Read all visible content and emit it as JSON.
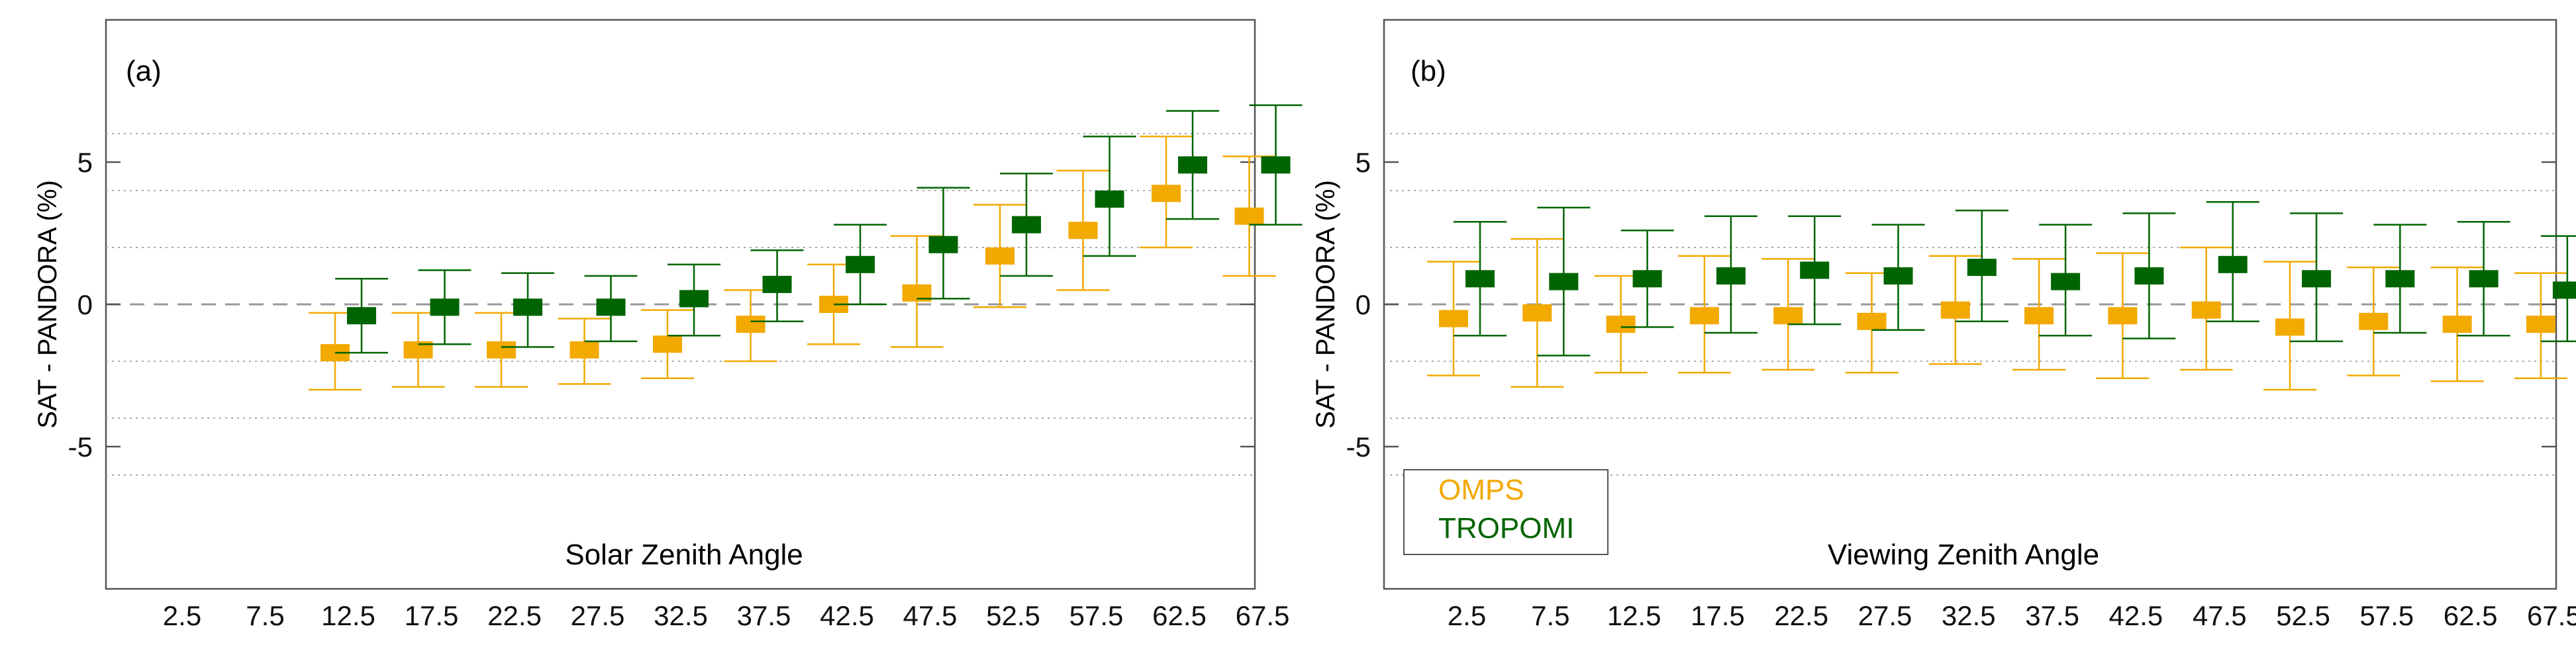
{
  "colors": {
    "omps": "#f2a900",
    "tropomi": "#006400",
    "zero_line": "#999999",
    "grid": "#aaaaaa",
    "frame": "#555555",
    "text": "#111111"
  },
  "legend": {
    "placement": "bottom-left",
    "items": [
      {
        "label": "OMPS",
        "color": "#f2a900"
      },
      {
        "label": "TROPOMI",
        "color": "#006400"
      }
    ]
  },
  "chart_data": [
    {
      "type": "errorbar",
      "panel_label": "(a)",
      "inner_label": "Solar Zenith Angle",
      "ylabel": "SAT - PANDORA (%)",
      "xlabel": "",
      "categories": [
        "2.5",
        "7.5",
        "12.5",
        "17.5",
        "22.5",
        "27.5",
        "32.5",
        "37.5",
        "42.5",
        "47.5",
        "52.5",
        "57.5",
        "62.5",
        "67.5"
      ],
      "ylim": [
        -10,
        10
      ],
      "yticks": [
        -5,
        0,
        5
      ],
      "ytick_labels": [
        "-5",
        "0",
        "5"
      ],
      "dotted_gridlines": [
        -6,
        -4,
        -2,
        2,
        4,
        6
      ],
      "zero_line": true,
      "series": [
        {
          "name": "OMPS",
          "color": "#f2a900",
          "values": [
            null,
            null,
            -1.7,
            -1.6,
            -1.6,
            -1.6,
            -1.4,
            -0.7,
            0.0,
            0.4,
            1.7,
            2.6,
            3.9,
            3.1
          ],
          "err_low": [
            null,
            null,
            -3.0,
            -2.9,
            -2.9,
            -2.8,
            -2.6,
            -2.0,
            -1.4,
            -1.5,
            -0.1,
            0.5,
            2.0,
            1.0
          ],
          "err_high": [
            null,
            null,
            -0.3,
            -0.3,
            -0.3,
            -0.5,
            -0.2,
            0.5,
            1.4,
            2.4,
            3.5,
            4.7,
            5.9,
            5.2
          ]
        },
        {
          "name": "TROPOMI",
          "color": "#006400",
          "values": [
            null,
            null,
            -0.4,
            -0.1,
            -0.1,
            -0.1,
            0.2,
            0.7,
            1.4,
            2.1,
            2.8,
            3.7,
            4.9,
            4.9
          ],
          "err_low": [
            null,
            null,
            -1.7,
            -1.4,
            -1.5,
            -1.3,
            -1.1,
            -0.6,
            0.0,
            0.2,
            1.0,
            1.7,
            3.0,
            2.8
          ],
          "err_high": [
            null,
            null,
            0.9,
            1.2,
            1.1,
            1.0,
            1.4,
            1.9,
            2.8,
            4.1,
            4.6,
            5.9,
            6.8,
            7.0
          ]
        }
      ]
    },
    {
      "type": "errorbar",
      "panel_label": "(b)",
      "inner_label": "Viewing Zenith Angle",
      "ylabel": "SAT - PANDORA (%)",
      "xlabel": "",
      "categories": [
        "2.5",
        "7.5",
        "12.5",
        "17.5",
        "22.5",
        "27.5",
        "32.5",
        "37.5",
        "42.5",
        "47.5",
        "52.5",
        "57.5",
        "62.5",
        "67.5"
      ],
      "ylim": [
        -10,
        10
      ],
      "yticks": [
        -5,
        0,
        5
      ],
      "ytick_labels": [
        "-5",
        "0",
        "5"
      ],
      "dotted_gridlines": [
        -6,
        -4,
        -2,
        2,
        4,
        6
      ],
      "zero_line": true,
      "series": [
        {
          "name": "OMPS",
          "color": "#f2a900",
          "values": [
            -0.5,
            -0.3,
            -0.7,
            -0.4,
            -0.4,
            -0.6,
            -0.2,
            -0.4,
            -0.4,
            -0.2,
            -0.8,
            -0.6,
            -0.7,
            -0.7
          ],
          "err_low": [
            -2.5,
            -2.9,
            -2.4,
            -2.4,
            -2.3,
            -2.4,
            -2.1,
            -2.3,
            -2.6,
            -2.3,
            -3.0,
            -2.5,
            -2.7,
            -2.6
          ],
          "err_high": [
            1.5,
            2.3,
            1.0,
            1.7,
            1.6,
            1.1,
            1.7,
            1.6,
            1.8,
            2.0,
            1.5,
            1.3,
            1.3,
            1.1
          ]
        },
        {
          "name": "TROPOMI",
          "color": "#006400",
          "values": [
            0.9,
            0.8,
            0.9,
            1.0,
            1.2,
            1.0,
            1.3,
            0.8,
            1.0,
            1.4,
            0.9,
            0.9,
            0.9,
            0.5
          ],
          "err_low": [
            -1.1,
            -1.8,
            -0.8,
            -1.0,
            -0.7,
            -0.9,
            -0.6,
            -1.1,
            -1.2,
            -0.6,
            -1.3,
            -1.0,
            -1.1,
            -1.3
          ],
          "err_high": [
            2.9,
            3.4,
            2.6,
            3.1,
            3.1,
            2.8,
            3.3,
            2.8,
            3.2,
            3.6,
            3.2,
            2.8,
            2.9,
            2.4
          ]
        }
      ]
    }
  ]
}
